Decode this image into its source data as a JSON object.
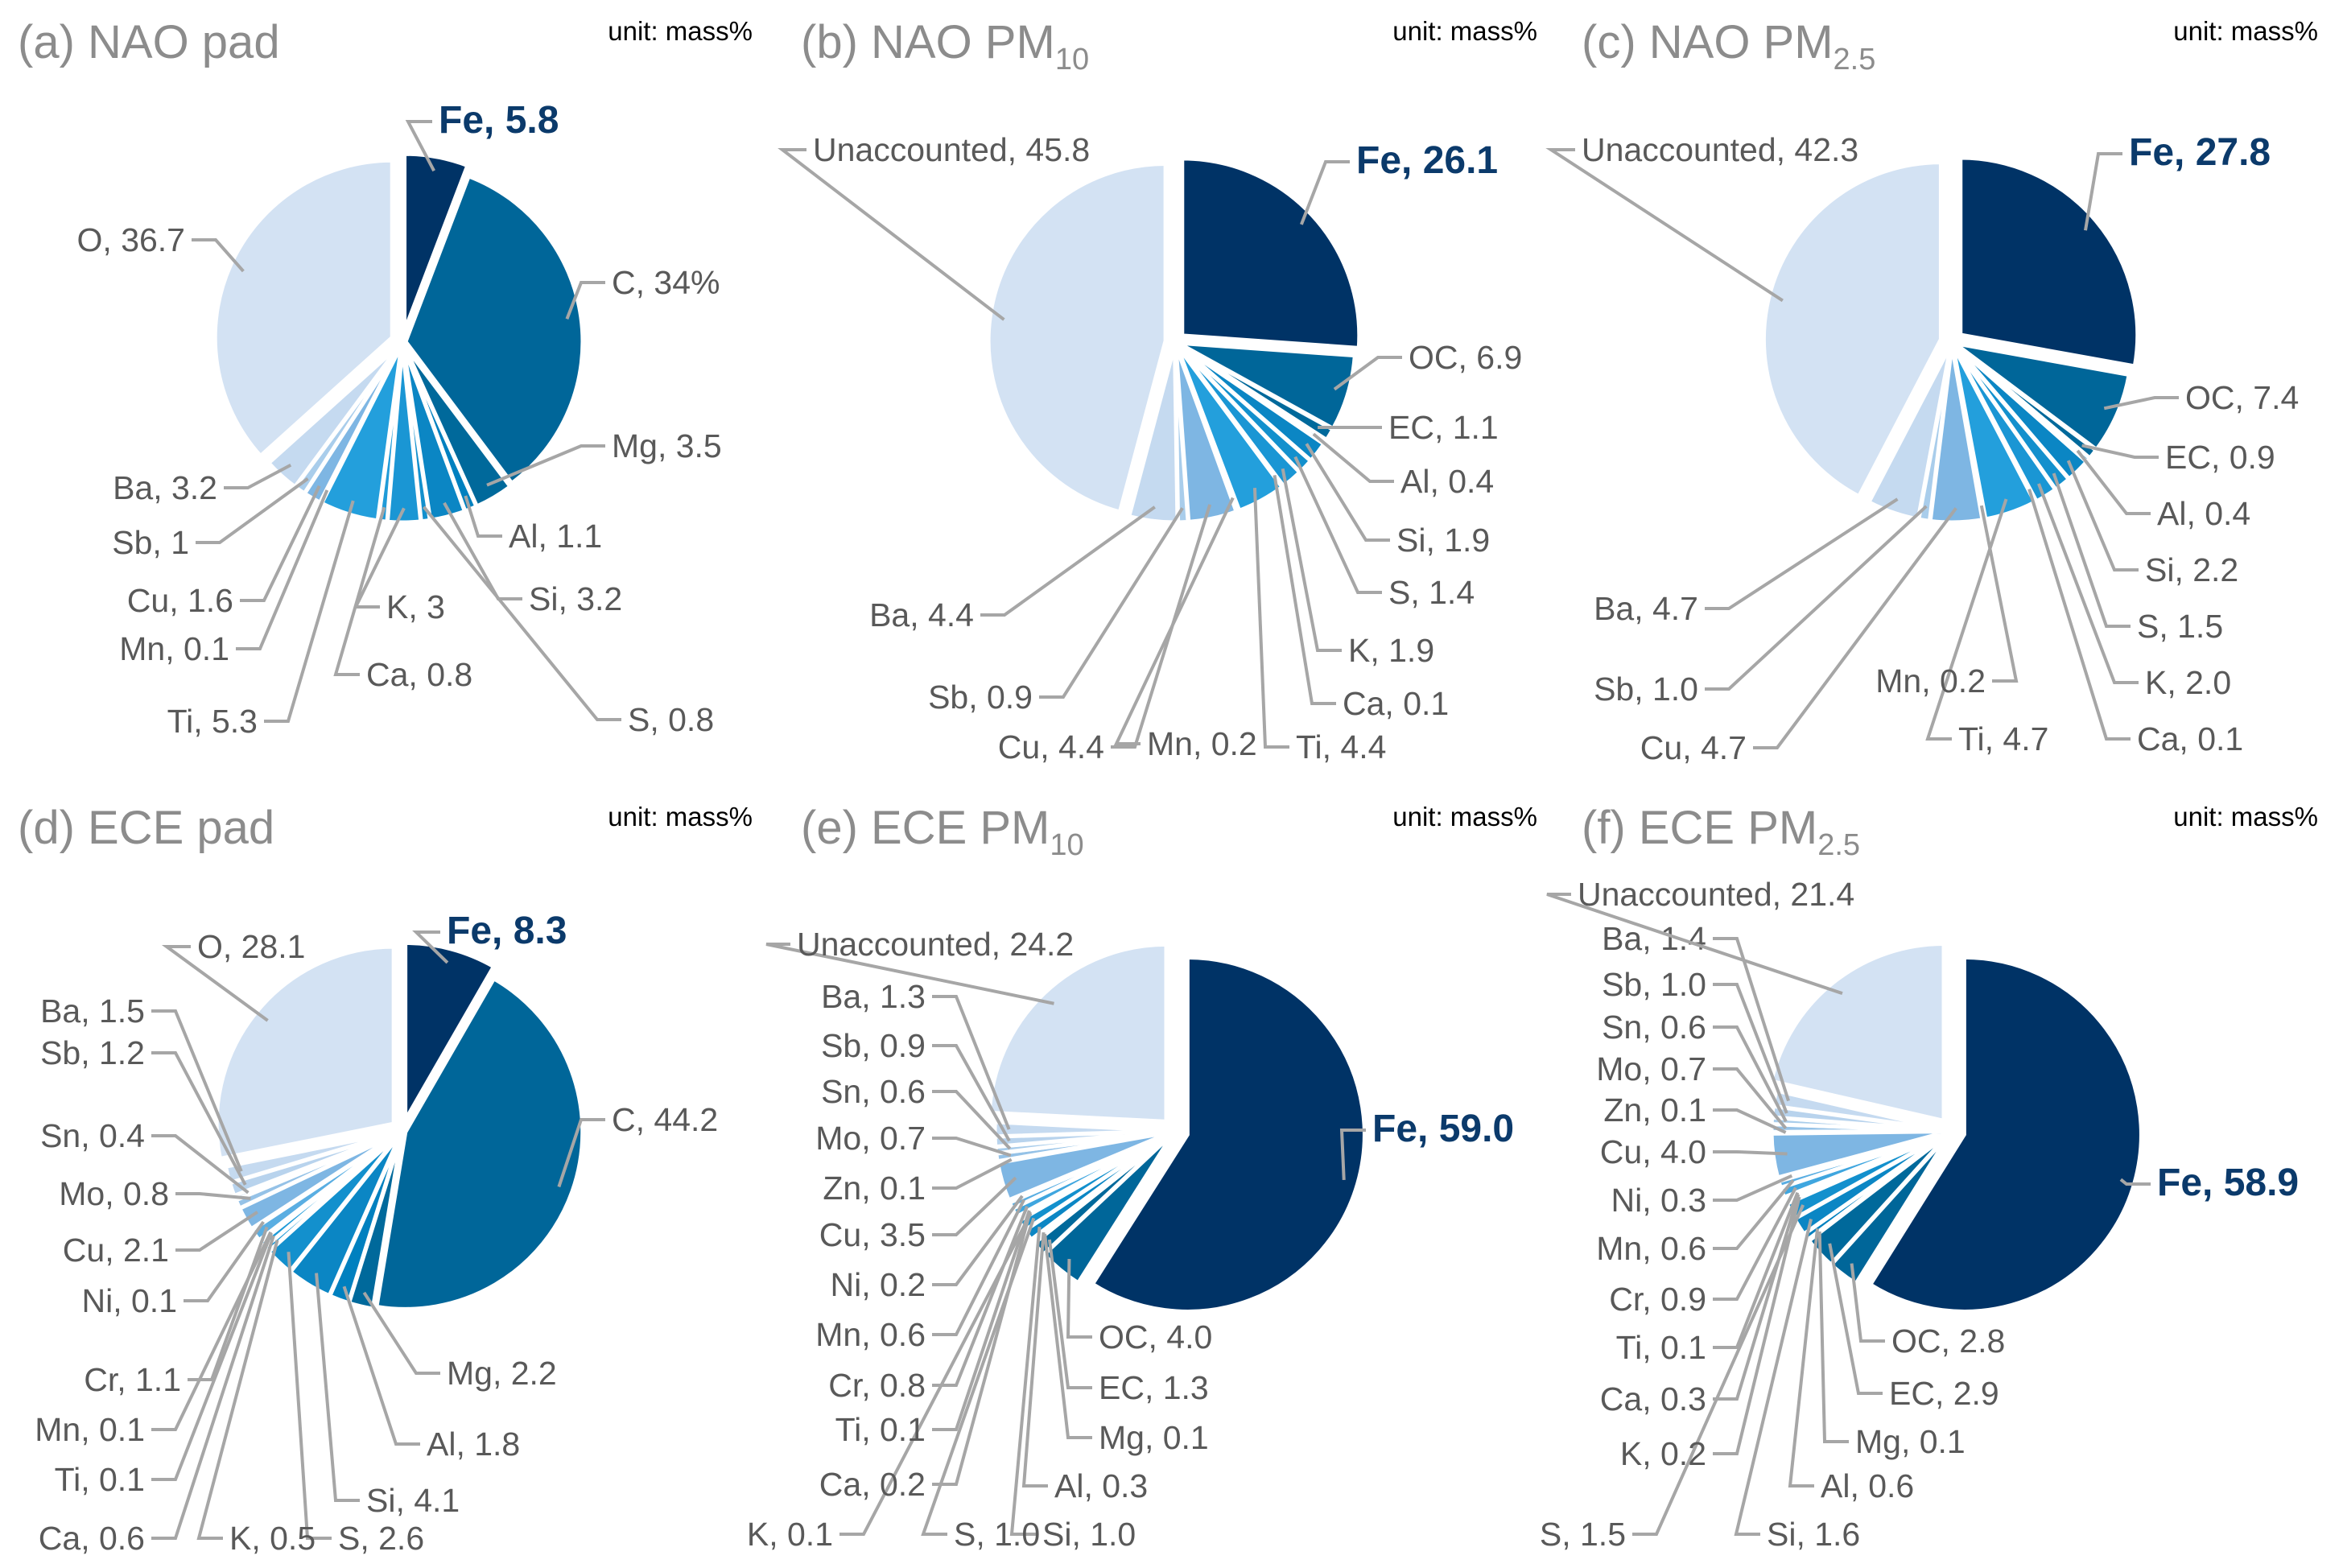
{
  "chart_data": [
    {
      "type": "pie",
      "id": "a",
      "title": "(a) NAO pad",
      "title_parts": [
        "(a) NAO pad"
      ],
      "unit": "unit: mass%",
      "slices": [
        {
          "name": "Fe",
          "value": 5.8,
          "label": "Fe, 5.8",
          "color": "#003366",
          "highlight": true
        },
        {
          "name": "C",
          "value": 34,
          "label": "C, 34%",
          "color": "#006699"
        },
        {
          "name": "Mg",
          "value": 3.5,
          "label": "Mg, 3.5",
          "color": "#00699b"
        },
        {
          "name": "Al",
          "value": 1.1,
          "label": "Al, 1.1",
          "color": "#0080bf"
        },
        {
          "name": "Si",
          "value": 3.2,
          "label": "Si, 3.2",
          "color": "#0b86c4"
        },
        {
          "name": "S",
          "value": 0.8,
          "label": "S, 0.8",
          "color": "#1390cd"
        },
        {
          "name": "K",
          "value": 3,
          "label": "K, 3",
          "color": "#1a96d4"
        },
        {
          "name": "Ca",
          "value": 0.8,
          "label": "Ca, 0.8",
          "color": "#1f9bd8"
        },
        {
          "name": "Ti",
          "value": 5.3,
          "label": "Ti, 5.3",
          "color": "#239fdc"
        },
        {
          "name": "Mn",
          "value": 0.1,
          "label": "Mn, 0.1",
          "color": "#5aaee2"
        },
        {
          "name": "Cu",
          "value": 1.6,
          "label": "Cu, 1.6",
          "color": "#7eb6e3"
        },
        {
          "name": "Sb",
          "value": 1,
          "label": "Sb, 1",
          "color": "#a9cdeb"
        },
        {
          "name": "Ba",
          "value": 3.2,
          "label": "Ba, 3.2",
          "color": "#c5daf0"
        },
        {
          "name": "O",
          "value": 36.7,
          "label": "O, 36.7",
          "color": "#d3e2f3"
        }
      ]
    },
    {
      "type": "pie",
      "id": "b",
      "title": "(b) NAO PM10",
      "title_parts": [
        "(b) NAO PM",
        "10"
      ],
      "unit": "unit: mass%",
      "slices": [
        {
          "name": "Fe",
          "value": 26.1,
          "label": "Fe, 26.1",
          "color": "#003366",
          "highlight": true
        },
        {
          "name": "OC",
          "value": 6.9,
          "label": "OC, 6.9",
          "color": "#006699"
        },
        {
          "name": "EC",
          "value": 1.1,
          "label": "EC, 1.1",
          "color": "#00699b"
        },
        {
          "name": "Al",
          "value": 0.4,
          "label": "Al, 0.4",
          "color": "#0080bf"
        },
        {
          "name": "Si",
          "value": 1.9,
          "label": "Si, 1.9",
          "color": "#0b86c4"
        },
        {
          "name": "S",
          "value": 1.4,
          "label": "S, 1.4",
          "color": "#1390cd"
        },
        {
          "name": "K",
          "value": 1.9,
          "label": "K, 1.9",
          "color": "#1a96d4"
        },
        {
          "name": "Ca",
          "value": 0.1,
          "label": "Ca, 0.1",
          "color": "#1f9bd8"
        },
        {
          "name": "Ti",
          "value": 4.4,
          "label": "Ti, 4.4",
          "color": "#239fdc"
        },
        {
          "name": "Mn",
          "value": 0.2,
          "label": "Mn, 0.2",
          "color": "#5aaee2"
        },
        {
          "name": "Cu",
          "value": 4.4,
          "label": "Cu, 4.4",
          "color": "#7eb6e3"
        },
        {
          "name": "Sb",
          "value": 0.9,
          "label": "Sb, 0.9",
          "color": "#a9cdeb"
        },
        {
          "name": "Ba",
          "value": 4.4,
          "label": "Ba, 4.4",
          "color": "#c5daf0"
        },
        {
          "name": "Unaccounted",
          "value": 45.8,
          "label": "Unaccounted, 45.8",
          "color": "#d3e2f3"
        }
      ]
    },
    {
      "type": "pie",
      "id": "c",
      "title": "(c) NAO PM2.5",
      "title_parts": [
        "(c) NAO PM",
        "2.5"
      ],
      "unit": "unit: mass%",
      "slices": [
        {
          "name": "Fe",
          "value": 27.8,
          "label": "Fe, 27.8",
          "color": "#003366",
          "highlight": true
        },
        {
          "name": "OC",
          "value": 7.4,
          "label": "OC, 7.4",
          "color": "#006699"
        },
        {
          "name": "EC",
          "value": 0.9,
          "label": "EC, 0.9",
          "color": "#00699b"
        },
        {
          "name": "Al",
          "value": 0.4,
          "label": "Al, 0.4",
          "color": "#0080bf"
        },
        {
          "name": "Si",
          "value": 2.2,
          "label": "Si, 2.2",
          "color": "#0b86c4"
        },
        {
          "name": "S",
          "value": 1.5,
          "label": "S, 1.5",
          "color": "#1390cd"
        },
        {
          "name": "K",
          "value": 2.0,
          "label": "K, 2.0",
          "color": "#1a96d4"
        },
        {
          "name": "Ca",
          "value": 0.1,
          "label": "Ca, 0.1",
          "color": "#1f9bd8"
        },
        {
          "name": "Ti",
          "value": 4.7,
          "label": "Ti, 4.7",
          "color": "#239fdc"
        },
        {
          "name": "Mn",
          "value": 0.2,
          "label": "Mn, 0.2",
          "color": "#5aaee2"
        },
        {
          "name": "Cu",
          "value": 4.7,
          "label": "Cu, 4.7",
          "color": "#7eb6e3"
        },
        {
          "name": "Sb",
          "value": 1.0,
          "label": "Sb, 1.0",
          "color": "#a9cdeb"
        },
        {
          "name": "Ba",
          "value": 4.7,
          "label": "Ba, 4.7",
          "color": "#c5daf0"
        },
        {
          "name": "Unaccounted",
          "value": 42.3,
          "label": "Unaccounted, 42.3",
          "color": "#d3e2f3"
        }
      ]
    },
    {
      "type": "pie",
      "id": "d",
      "title": "(d) ECE pad",
      "title_parts": [
        "(d) ECE pad"
      ],
      "unit": "unit: mass%",
      "slices": [
        {
          "name": "Fe",
          "value": 8.3,
          "label": "Fe, 8.3",
          "color": "#003366",
          "highlight": true
        },
        {
          "name": "C",
          "value": 44.2,
          "label": "C, 44.2",
          "color": "#006699"
        },
        {
          "name": "Mg",
          "value": 2.2,
          "label": "Mg, 2.2",
          "color": "#00699b"
        },
        {
          "name": "Al",
          "value": 1.8,
          "label": "Al, 1.8",
          "color": "#0080bf"
        },
        {
          "name": "Si",
          "value": 4.1,
          "label": "Si, 4.1",
          "color": "#0b86c4"
        },
        {
          "name": "S",
          "value": 2.6,
          "label": "S, 2.6",
          "color": "#1390cd"
        },
        {
          "name": "K",
          "value": 0.5,
          "label": "K, 0.5",
          "color": "#1a96d4"
        },
        {
          "name": "Ca",
          "value": 0.6,
          "label": "Ca, 0.6",
          "color": "#1f9bd8"
        },
        {
          "name": "Ti",
          "value": 0.1,
          "label": "Ti, 0.1",
          "color": "#239fdc"
        },
        {
          "name": "Mn",
          "value": 0.1,
          "label": "Mn, 0.1",
          "color": "#3fa6df"
        },
        {
          "name": "Cr",
          "value": 1.1,
          "label": "Cr, 1.1",
          "color": "#5aaee2"
        },
        {
          "name": "Ni",
          "value": 0.1,
          "label": "Ni, 0.1",
          "color": "#6db2e2"
        },
        {
          "name": "Cu",
          "value": 2.1,
          "label": "Cu, 2.1",
          "color": "#7eb6e3"
        },
        {
          "name": "Mo",
          "value": 0.8,
          "label": "Mo, 0.8",
          "color": "#95c2e7"
        },
        {
          "name": "Sn",
          "value": 0.4,
          "label": "Sn, 0.4",
          "color": "#a9cdeb"
        },
        {
          "name": "Sb",
          "value": 1.2,
          "label": "Sb, 1.2",
          "color": "#b8d3ed"
        },
        {
          "name": "Ba",
          "value": 1.5,
          "label": "Ba, 1.5",
          "color": "#c5daf0"
        },
        {
          "name": "O",
          "value": 28.1,
          "label": "O, 28.1",
          "color": "#d3e2f3"
        }
      ]
    },
    {
      "type": "pie",
      "id": "e",
      "title": "(e) ECE PM10",
      "title_parts": [
        "(e) ECE PM",
        "10"
      ],
      "unit": "unit: mass%",
      "slices": [
        {
          "name": "Fe",
          "value": 59.0,
          "label": "Fe, 59.0",
          "color": "#003366",
          "highlight": true
        },
        {
          "name": "OC",
          "value": 4.0,
          "label": "OC, 4.0",
          "color": "#006699"
        },
        {
          "name": "EC",
          "value": 1.3,
          "label": "EC, 1.3",
          "color": "#00699b"
        },
        {
          "name": "Mg",
          "value": 0.1,
          "label": "Mg, 0.1",
          "color": "#0075ad"
        },
        {
          "name": "Al",
          "value": 0.3,
          "label": "Al, 0.3",
          "color": "#0080bf"
        },
        {
          "name": "Si",
          "value": 1.0,
          "label": "Si, 1.0",
          "color": "#0b86c4"
        },
        {
          "name": "S",
          "value": 1.0,
          "label": "S, 1.0",
          "color": "#1390cd"
        },
        {
          "name": "K",
          "value": 0.1,
          "label": "K, 0.1",
          "color": "#1a96d4"
        },
        {
          "name": "Ca",
          "value": 0.2,
          "label": "Ca, 0.2",
          "color": "#1f9bd8"
        },
        {
          "name": "Ti",
          "value": 0.1,
          "label": "Ti, 0.1",
          "color": "#239fdc"
        },
        {
          "name": "Cr",
          "value": 0.8,
          "label": "Cr, 0.8",
          "color": "#3fa6df"
        },
        {
          "name": "Mn",
          "value": 0.6,
          "label": "Mn, 0.6",
          "color": "#5aaee2"
        },
        {
          "name": "Ni",
          "value": 0.2,
          "label": "Ni, 0.2",
          "color": "#6db2e2"
        },
        {
          "name": "Cu",
          "value": 3.5,
          "label": "Cu, 3.5",
          "color": "#7eb6e3"
        },
        {
          "name": "Zn",
          "value": 0.1,
          "label": "Zn, 0.1",
          "color": "#8bbce5"
        },
        {
          "name": "Mo",
          "value": 0.7,
          "label": "Mo, 0.7",
          "color": "#95c2e7"
        },
        {
          "name": "Sn",
          "value": 0.6,
          "label": "Sn, 0.6",
          "color": "#a9cdeb"
        },
        {
          "name": "Sb",
          "value": 0.9,
          "label": "Sb, 0.9",
          "color": "#b8d3ed"
        },
        {
          "name": "Ba",
          "value": 1.3,
          "label": "Ba, 1.3",
          "color": "#c5daf0"
        },
        {
          "name": "Unaccounted",
          "value": 24.2,
          "label": "Unaccounted, 24.2",
          "color": "#d3e2f3"
        }
      ]
    },
    {
      "type": "pie",
      "id": "f",
      "title": "(f) ECE PM2.5",
      "title_parts": [
        "(f) ECE PM",
        "2.5"
      ],
      "unit": "unit: mass%",
      "slices": [
        {
          "name": "Fe",
          "value": 58.9,
          "label": "Fe, 58.9",
          "color": "#003366",
          "highlight": true
        },
        {
          "name": "OC",
          "value": 2.8,
          "label": "OC, 2.8",
          "color": "#006699"
        },
        {
          "name": "EC",
          "value": 2.9,
          "label": "EC, 2.9",
          "color": "#00699b"
        },
        {
          "name": "Mg",
          "value": 0.1,
          "label": "Mg, 0.1",
          "color": "#0075ad"
        },
        {
          "name": "Al",
          "value": 0.6,
          "label": "Al, 0.6",
          "color": "#0080bf"
        },
        {
          "name": "Si",
          "value": 1.6,
          "label": "Si, 1.6",
          "color": "#0b86c4"
        },
        {
          "name": "S",
          "value": 1.5,
          "label": "S, 1.5",
          "color": "#1390cd"
        },
        {
          "name": "K",
          "value": 0.2,
          "label": "K, 0.2",
          "color": "#1a96d4"
        },
        {
          "name": "Ca",
          "value": 0.3,
          "label": "Ca, 0.3",
          "color": "#1f9bd8"
        },
        {
          "name": "Ti",
          "value": 0.1,
          "label": "Ti, 0.1",
          "color": "#239fdc"
        },
        {
          "name": "Cr",
          "value": 0.9,
          "label": "Cr, 0.9",
          "color": "#3fa6df"
        },
        {
          "name": "Mn",
          "value": 0.6,
          "label": "Mn, 0.6",
          "color": "#5aaee2"
        },
        {
          "name": "Ni",
          "value": 0.3,
          "label": "Ni, 0.3",
          "color": "#6db2e2"
        },
        {
          "name": "Cu",
          "value": 4.0,
          "label": "Cu, 4.0",
          "color": "#7eb6e3"
        },
        {
          "name": "Zn",
          "value": 0.1,
          "label": "Zn, 0.1",
          "color": "#8bbce5"
        },
        {
          "name": "Mo",
          "value": 0.7,
          "label": "Mo, 0.7",
          "color": "#95c2e7"
        },
        {
          "name": "Sn",
          "value": 0.6,
          "label": "Sn, 0.6",
          "color": "#a9cdeb"
        },
        {
          "name": "Sb",
          "value": 1.0,
          "label": "Sb, 1.0",
          "color": "#b8d3ed"
        },
        {
          "name": "Ba",
          "value": 1.4,
          "label": "Ba, 1.4",
          "color": "#c5daf0"
        },
        {
          "name": "Unaccounted",
          "value": 21.4,
          "label": "Unaccounted, 21.4",
          "color": "#d3e2f3"
        }
      ]
    }
  ]
}
